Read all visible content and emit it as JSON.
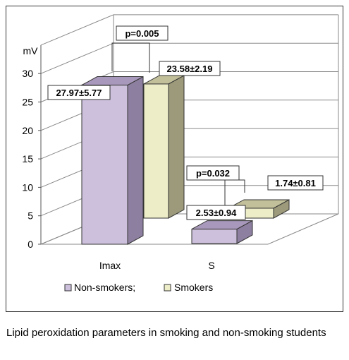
{
  "chart_data": {
    "type": "bar",
    "unit_label": "mV",
    "categories": [
      "Imax",
      "S"
    ],
    "series": [
      {
        "name": "Non-smokers;",
        "values": [
          27.97,
          2.53
        ],
        "sd": [
          5.77,
          0.94
        ],
        "color": "#ccc0dc",
        "side_color": "#8d7fa0",
        "top_color": "#a898bb"
      },
      {
        "name": "Smokers",
        "values": [
          23.58,
          1.74
        ],
        "sd": [
          2.19,
          0.81
        ],
        "color": "#ededc8",
        "side_color": "#9c9a7a",
        "top_color": "#c2c09a"
      }
    ],
    "value_labels": [
      [
        "27.97±5.77",
        "2.53±0.94"
      ],
      [
        "23.58±2.19",
        "1.74±0.81"
      ]
    ],
    "p_values": [
      "p=0.005",
      "p=0.032"
    ],
    "yticks": [
      0,
      5,
      10,
      15,
      20,
      25,
      30
    ],
    "ylim": [
      0,
      35
    ],
    "grid": true,
    "legend_position": "bottom"
  },
  "caption": "Lipid peroxidation parameters in smoking and non-smoking students"
}
